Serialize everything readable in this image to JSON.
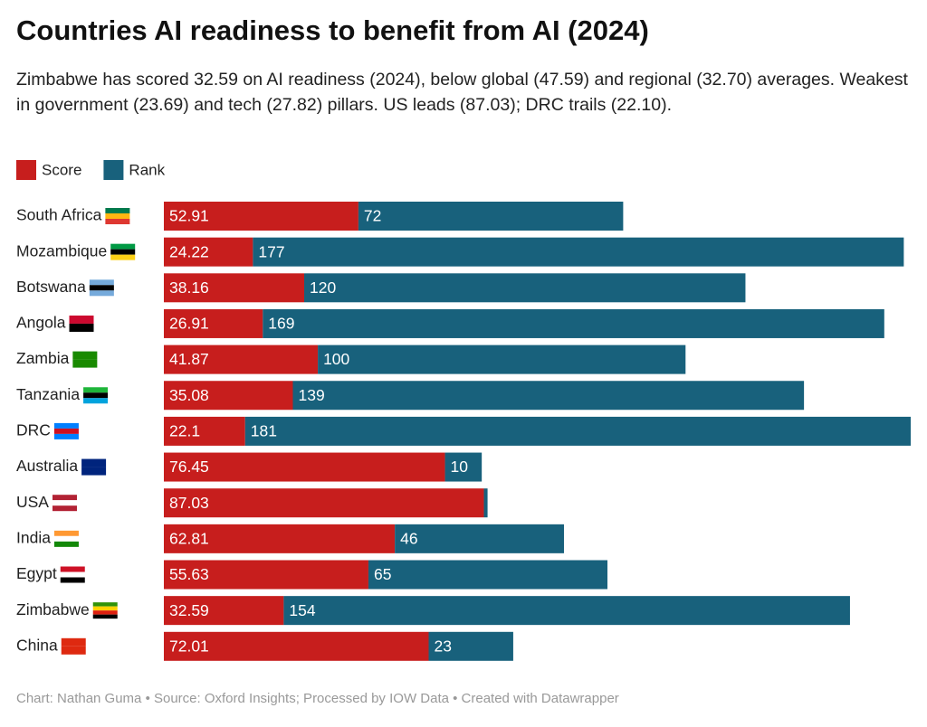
{
  "chart_data": {
    "type": "stacked-bar",
    "title": "Countries AI readiness to benefit from AI (2024)",
    "subtitle": "Zimbabwe has scored 32.59 on AI readiness (2024), below global (47.59) and regional (32.70) averages. Weakest in government (23.69) and tech (27.82) pillars. US leads (87.03); DRC trails (22.10).",
    "categories": [
      "South Africa",
      "Mozambique",
      "Botswana",
      "Angola",
      "Zambia",
      "Tanzania",
      "DRC",
      "Australia",
      "USA",
      "India",
      "Egypt",
      "Zimbabwe",
      "China"
    ],
    "series": [
      {
        "name": "Score",
        "color": "#c71e1d",
        "values": [
          52.91,
          24.22,
          38.16,
          26.91,
          41.87,
          35.08,
          22.1,
          76.45,
          87.03,
          62.81,
          55.63,
          32.59,
          72.01
        ]
      },
      {
        "name": "Rank",
        "color": "#18617c",
        "values": [
          72,
          177,
          120,
          169,
          100,
          139,
          181,
          10,
          1,
          46,
          65,
          154,
          23
        ]
      }
    ],
    "footer": "Chart: Nathan Guma  • Source: Oxford Insights; Processed by IOW Data • Created with Datawrapper"
  }
}
